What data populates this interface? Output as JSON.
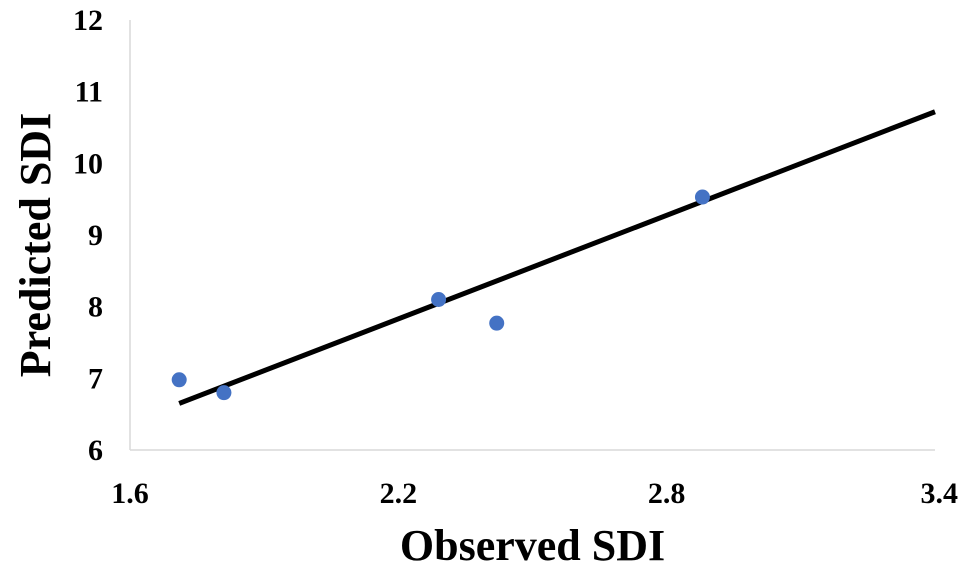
{
  "chart_data": {
    "type": "scatter",
    "title": "",
    "xlabel": "Observed SDI",
    "ylabel": "Predicted SDI",
    "xlim": [
      1.6,
      3.4
    ],
    "ylim": [
      6,
      12
    ],
    "x_ticks": [
      1.6,
      2.2,
      2.8,
      3.4
    ],
    "x_tick_labels": [
      "1.6",
      "2.2",
      "2.8",
      "3.4"
    ],
    "y_ticks": [
      6,
      7,
      8,
      9,
      10,
      11,
      12
    ],
    "y_tick_labels": [
      "6",
      "7",
      "8",
      "9",
      "10",
      "11",
      "12"
    ],
    "grid": false,
    "legend": "none",
    "series": [
      {
        "x": [
          1.71,
          1.81,
          2.29,
          2.42,
          2.88
        ],
        "y": [
          6.98,
          6.8,
          8.1,
          7.77,
          9.53
        ],
        "color": "#4472C4"
      }
    ],
    "trendline": {
      "type": "linear",
      "x": [
        1.71,
        3.4
      ],
      "y": [
        6.65,
        10.72
      ],
      "color": "#000000"
    }
  }
}
